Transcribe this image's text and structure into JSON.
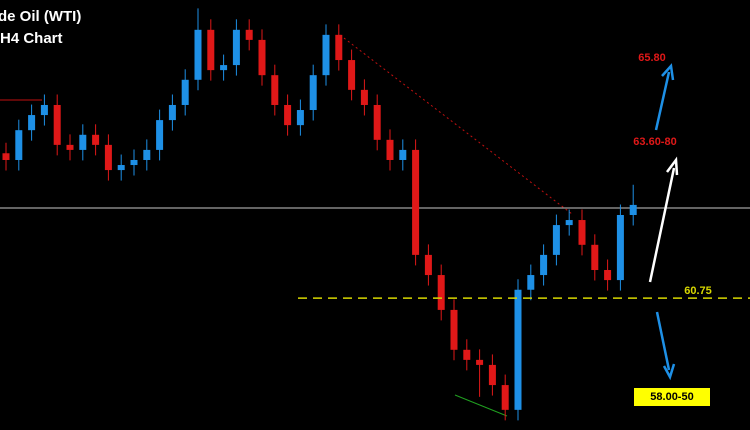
{
  "chart_data": {
    "type": "candlestick",
    "title": "de Oil (WTI)",
    "subtitle": "H4 Chart",
    "ylim": [
      57.61,
      67.85
    ],
    "up_color": "#1e90e6",
    "down_color": "#e01818",
    "open": [
      64.2,
      64.04,
      64.75,
      65.11,
      65.35,
      64.4,
      64.28,
      64.64,
      64.4,
      63.8,
      63.92,
      64.04,
      64.28,
      64.99,
      65.35,
      65.95,
      67.14,
      66.18,
      66.3,
      67.14,
      66.9,
      66.06,
      65.35,
      64.87,
      65.23,
      66.06,
      67.02,
      66.42,
      65.71,
      65.35,
      64.52,
      64.04,
      64.28,
      61.78,
      61.3,
      60.47,
      59.52,
      59.28,
      59.16,
      58.68,
      58.09,
      60.95,
      61.3,
      61.78,
      62.49,
      62.61,
      62.02,
      61.42,
      61.18,
      62.73
    ],
    "high": [
      64.45,
      65.0,
      65.36,
      65.6,
      65.6,
      64.65,
      64.89,
      64.89,
      64.65,
      64.17,
      64.29,
      64.53,
      65.24,
      65.6,
      66.2,
      67.65,
      67.39,
      66.55,
      67.39,
      67.39,
      67.15,
      66.31,
      65.6,
      65.48,
      66.31,
      67.27,
      67.27,
      66.67,
      65.96,
      65.6,
      64.77,
      64.53,
      64.53,
      62.03,
      61.55,
      60.72,
      59.77,
      59.53,
      59.41,
      58.93,
      61.2,
      61.55,
      62.03,
      62.74,
      62.86,
      62.86,
      62.27,
      61.67,
      62.98,
      63.45
    ],
    "low": [
      63.79,
      63.79,
      64.5,
      64.86,
      64.15,
      64.03,
      64.03,
      64.15,
      63.55,
      63.55,
      63.67,
      63.79,
      64.03,
      64.74,
      65.1,
      65.7,
      65.93,
      65.93,
      66.05,
      66.65,
      65.81,
      65.1,
      64.62,
      64.62,
      64.98,
      65.81,
      66.17,
      65.46,
      65.1,
      64.27,
      63.79,
      63.79,
      61.53,
      61.05,
      60.22,
      59.27,
      59.03,
      58.4,
      58.43,
      57.84,
      57.84,
      60.7,
      61.05,
      61.53,
      62.24,
      61.77,
      61.17,
      60.93,
      60.93,
      62.48
    ],
    "close": [
      64.04,
      64.75,
      65.11,
      65.35,
      64.4,
      64.28,
      64.64,
      64.4,
      63.8,
      63.92,
      64.04,
      64.28,
      64.99,
      65.35,
      65.95,
      67.14,
      66.18,
      66.3,
      67.14,
      66.9,
      66.06,
      65.35,
      64.87,
      65.23,
      66.06,
      67.02,
      66.42,
      65.71,
      65.35,
      64.52,
      64.04,
      64.28,
      61.78,
      61.3,
      60.47,
      59.52,
      59.28,
      59.16,
      58.68,
      58.09,
      60.95,
      61.3,
      61.78,
      62.49,
      62.61,
      62.02,
      61.42,
      61.18,
      62.73,
      62.97
    ],
    "support": 60.75,
    "support_color": "#d8d800",
    "target_high": {
      "value": 65.8,
      "label": "65.80"
    },
    "target_mid": "63.60-80",
    "target_low": "58.00-50"
  }
}
